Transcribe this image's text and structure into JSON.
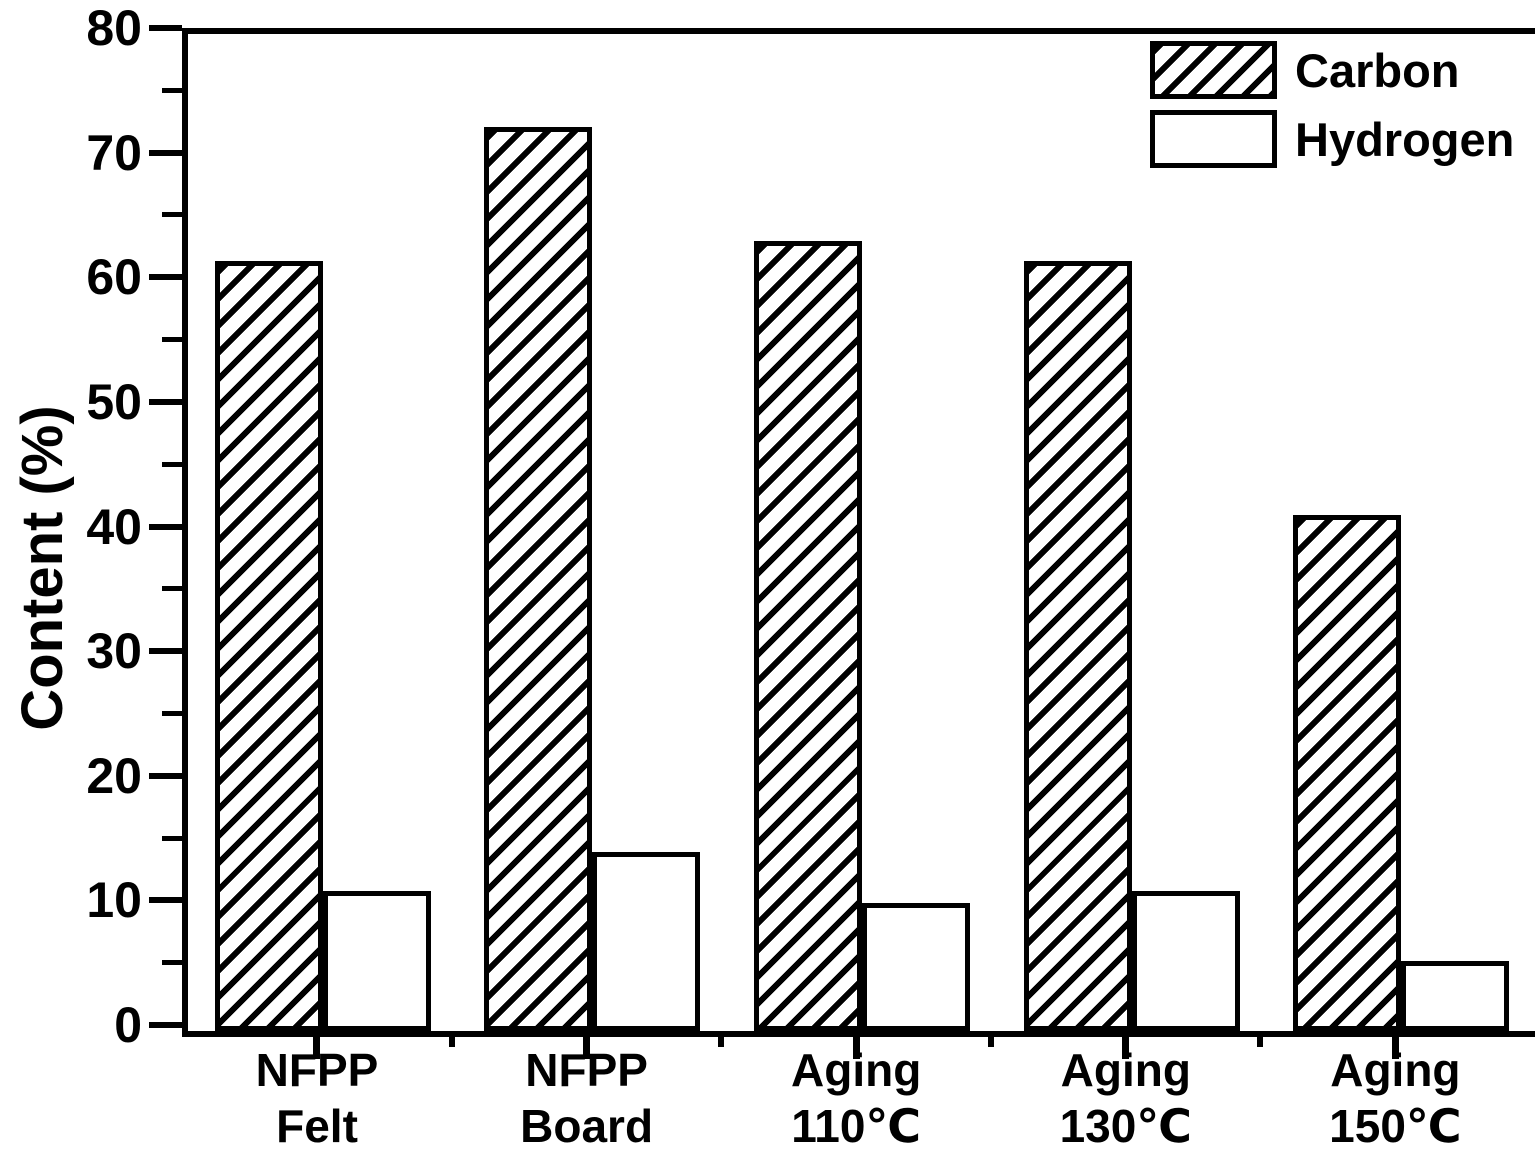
{
  "figure": {
    "background_color": "#ffffff",
    "foreground_color": "#000000"
  },
  "chart_data": {
    "type": "bar",
    "title": "",
    "xlabel": "",
    "ylabel": "Content (%)",
    "ylim": [
      0,
      80
    ],
    "yticks": [
      0,
      10,
      20,
      30,
      40,
      50,
      60,
      70,
      80
    ],
    "yticks_minor": [
      5,
      15,
      25,
      35,
      45,
      55,
      65,
      75
    ],
    "grid": false,
    "legend_position": "top-right",
    "categories": [
      {
        "line1": "NFPP",
        "line2": "Felt"
      },
      {
        "line1": "NFPP",
        "line2": "Board"
      },
      {
        "line1": "Aging",
        "line2": "110℃"
      },
      {
        "line1": "Aging",
        "line2": "130℃"
      },
      {
        "line1": "Aging",
        "line2": "150℃"
      }
    ],
    "series": [
      {
        "name": "Carbon",
        "fill": "diagonal-hatch",
        "values": [
          61.8,
          72.5,
          63.4,
          61.8,
          41.4
        ]
      },
      {
        "name": "Hydrogen",
        "fill": "white-solid",
        "values": [
          11.2,
          14.4,
          10.3,
          11.2,
          5.6
        ]
      }
    ]
  }
}
